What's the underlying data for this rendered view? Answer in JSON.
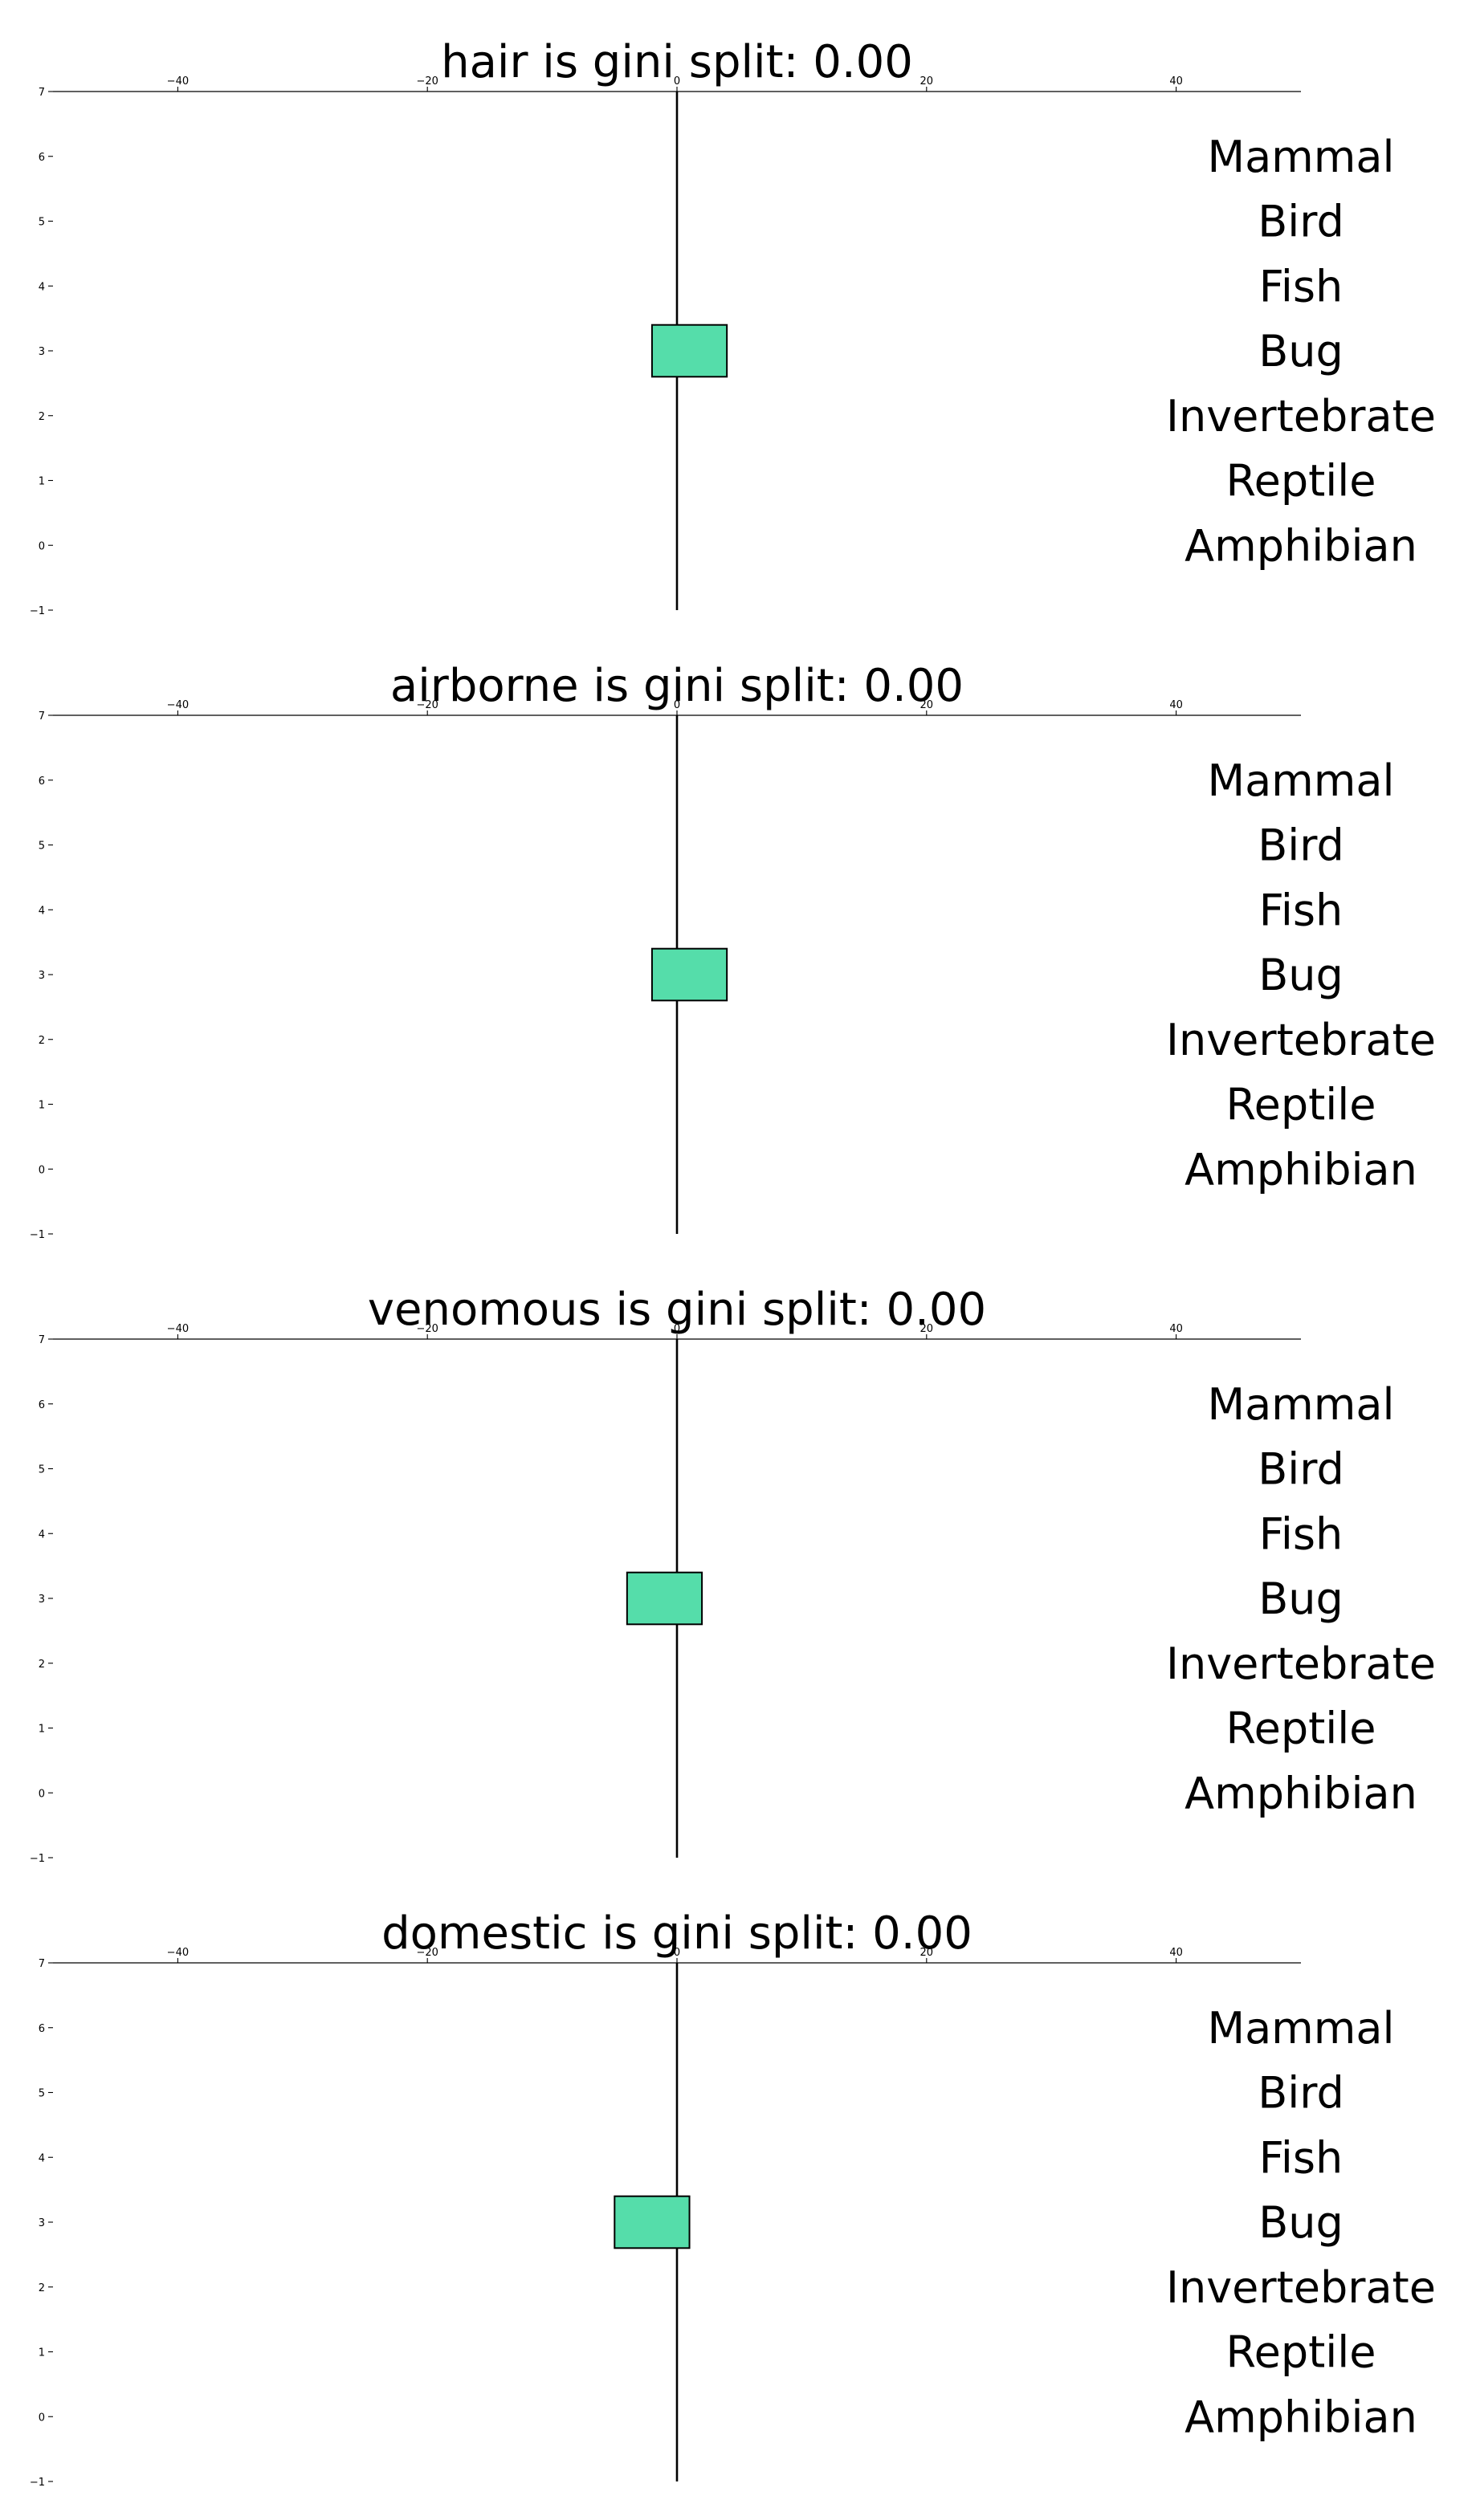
{
  "chart_data": [
    {
      "type": "bar",
      "orientation": "horizontal",
      "title": "hair is gini split: 0.00",
      "xlim": [
        -50,
        50
      ],
      "ylim": [
        -1,
        7
      ],
      "xticks": [
        -40,
        -20,
        0,
        20,
        40
      ],
      "xtick_labels": [
        "−40",
        "−20",
        "0",
        "20",
        "40"
      ],
      "yticks": [
        -1,
        0,
        1,
        2,
        3,
        4,
        5,
        6,
        7
      ],
      "ytick_labels": [
        "−1",
        "0",
        "1",
        "2",
        "3",
        "4",
        "5",
        "6",
        "7"
      ],
      "x_axis_position": "top",
      "grid": false,
      "categories": [
        "Amphibian",
        "Reptile",
        "Invertebrate",
        "Bug",
        "Fish",
        "Bird",
        "Mammal"
      ],
      "category_positions": [
        0,
        1,
        2,
        3,
        4,
        5,
        6
      ],
      "bars": [
        {
          "category": "Bug",
          "y": 3,
          "left": -2,
          "right": 4
        }
      ],
      "bar_color": "#55DDAA",
      "center_line_x": 0
    },
    {
      "type": "bar",
      "orientation": "horizontal",
      "title": "airborne is gini split: 0.00",
      "xlim": [
        -50,
        50
      ],
      "ylim": [
        -1,
        7
      ],
      "xticks": [
        -40,
        -20,
        0,
        20,
        40
      ],
      "xtick_labels": [
        "−40",
        "−20",
        "0",
        "20",
        "40"
      ],
      "yticks": [
        -1,
        0,
        1,
        2,
        3,
        4,
        5,
        6,
        7
      ],
      "ytick_labels": [
        "−1",
        "0",
        "1",
        "2",
        "3",
        "4",
        "5",
        "6",
        "7"
      ],
      "x_axis_position": "top",
      "grid": false,
      "categories": [
        "Amphibian",
        "Reptile",
        "Invertebrate",
        "Bug",
        "Fish",
        "Bird",
        "Mammal"
      ],
      "category_positions": [
        0,
        1,
        2,
        3,
        4,
        5,
        6
      ],
      "bars": [
        {
          "category": "Bug",
          "y": 3,
          "left": -2,
          "right": 4
        }
      ],
      "bar_color": "#55DDAA",
      "center_line_x": 0
    },
    {
      "type": "bar",
      "orientation": "horizontal",
      "title": "venomous is gini split: 0.00",
      "xlim": [
        -50,
        50
      ],
      "ylim": [
        -1,
        7
      ],
      "xticks": [
        -40,
        -20,
        0,
        20,
        40
      ],
      "xtick_labels": [
        "−40",
        "−20",
        "0",
        "20",
        "40"
      ],
      "yticks": [
        -1,
        0,
        1,
        2,
        3,
        4,
        5,
        6,
        7
      ],
      "ytick_labels": [
        "−1",
        "0",
        "1",
        "2",
        "3",
        "4",
        "5",
        "6",
        "7"
      ],
      "x_axis_position": "top",
      "grid": false,
      "categories": [
        "Amphibian",
        "Reptile",
        "Invertebrate",
        "Bug",
        "Fish",
        "Bird",
        "Mammal"
      ],
      "category_positions": [
        0,
        1,
        2,
        3,
        4,
        5,
        6
      ],
      "bars": [
        {
          "category": "Bug",
          "y": 3,
          "left": -4,
          "right": 2
        }
      ],
      "bar_color": "#55DDAA",
      "center_line_x": 0
    },
    {
      "type": "bar",
      "orientation": "horizontal",
      "title": "domestic is gini split: 0.00",
      "xlim": [
        -50,
        50
      ],
      "ylim": [
        -1,
        7
      ],
      "xticks": [
        -40,
        -20,
        0,
        20,
        40
      ],
      "xtick_labels": [
        "−40",
        "−20",
        "0",
        "20",
        "40"
      ],
      "yticks": [
        -1,
        0,
        1,
        2,
        3,
        4,
        5,
        6,
        7
      ],
      "ytick_labels": [
        "−1",
        "0",
        "1",
        "2",
        "3",
        "4",
        "5",
        "6",
        "7"
      ],
      "x_axis_position": "top",
      "grid": false,
      "categories": [
        "Amphibian",
        "Reptile",
        "Invertebrate",
        "Bug",
        "Fish",
        "Bird",
        "Mammal"
      ],
      "category_positions": [
        0,
        1,
        2,
        3,
        4,
        5,
        6
      ],
      "bars": [
        {
          "category": "Bug",
          "y": 3,
          "left": -5,
          "right": 1
        }
      ],
      "bar_color": "#55DDAA",
      "center_line_x": 0
    }
  ]
}
